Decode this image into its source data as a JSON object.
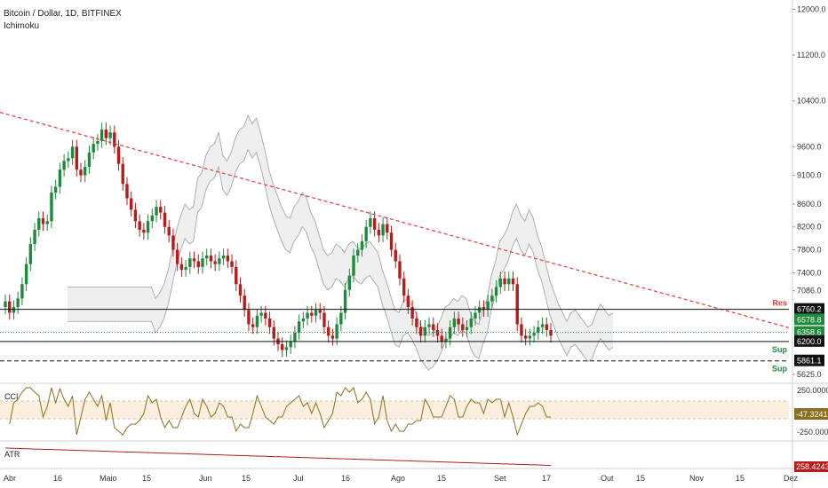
{
  "header": {
    "symbol": "Bitcoin / Dollar, 1D, BITFINEX",
    "indicator": "Ichimoku"
  },
  "colors": {
    "up": "#1e8a3c",
    "down": "#b71c1c",
    "trendline": "#e53935",
    "cloud": "#e8e8e8",
    "cloud_line": "#9e9e9e",
    "cci_line": "#8d6e1f",
    "cci_band": "#fbf0df",
    "atr_line": "#b71c1c",
    "res": "#e53935",
    "sup": "#1e8a3c"
  },
  "chart_data": {
    "type": "candlestick",
    "title": "Bitcoin / Dollar, 1D, BITFINEX",
    "y_axis_ticks": [
      "12000.0",
      "11200.0",
      "10400.0",
      "9600.0",
      "9100.0",
      "8600.0",
      "8200.0",
      "7800.0",
      "7400.0",
      "7086.0",
      "5625.0"
    ],
    "x_axis_ticks": [
      "Abr",
      "16",
      "Maio",
      "15",
      "Jun",
      "15",
      "Jul",
      "16",
      "Ago",
      "15",
      "Set",
      "17",
      "Out",
      "15",
      "Nov",
      "15",
      "Dez"
    ],
    "close_series": [
      6900,
      6700,
      6800,
      6950,
      7200,
      7550,
      7900,
      8150,
      8350,
      8250,
      8300,
      8800,
      8900,
      9200,
      9350,
      9400,
      9600,
      9200,
      9100,
      9250,
      9500,
      9650,
      9700,
      9900,
      9750,
      9850,
      9600,
      9300,
      8950,
      8700,
      8500,
      8300,
      8150,
      8100,
      8300,
      8400,
      8550,
      8450,
      8200,
      8050,
      7800,
      7550,
      7450,
      7500,
      7650,
      7600,
      7500,
      7650,
      7700,
      7600,
      7550,
      7650,
      7700,
      7600,
      7500,
      7200,
      7000,
      6750,
      6500,
      6450,
      6650,
      6700,
      6600,
      6450,
      6250,
      6150,
      6050,
      6100,
      6200,
      6350,
      6550,
      6600,
      6700,
      6650,
      6750,
      6700,
      6450,
      6300,
      6250,
      6500,
      6700,
      7100,
      7350,
      7700,
      7800,
      7950,
      8200,
      8350,
      8150,
      8050,
      8250,
      8100,
      7800,
      7600,
      7300,
      7000,
      6800,
      6600,
      6450,
      6300,
      6450,
      6500,
      6400,
      6300,
      6200,
      6250,
      6450,
      6600,
      6500,
      6400,
      6450,
      6600,
      6700,
      6800,
      6750,
      6900,
      7000,
      7150,
      7300,
      7200,
      7300,
      7200,
      6500,
      6300,
      6250,
      6300,
      6350,
      6450,
      6500,
      6400,
      6300
    ],
    "trendline": {
      "from": {
        "date": "Abr",
        "price": 10200
      },
      "to": {
        "date": "Dez",
        "price": 6440
      }
    },
    "levels": [
      {
        "label": "Res",
        "price": "6760.2",
        "style": "solid",
        "color": "#e53935"
      },
      {
        "label": "",
        "price": "6578.8",
        "style": "tag",
        "color": "#1e8a3c"
      },
      {
        "label": "",
        "price": "6358.6",
        "style": "dotted",
        "color": "#1e8a3c"
      },
      {
        "label": "Sup",
        "price": "6200.0",
        "style": "solid",
        "color": "#1e8a3c"
      },
      {
        "label": "Sup",
        "price": "5861.1",
        "style": "dashed",
        "color": "#1e8a3c"
      }
    ],
    "cci": {
      "ticks": [
        "250.0000",
        "-250.0000"
      ],
      "value": "-47.3241",
      "label": "CCI"
    },
    "atr": {
      "value": "258.4243",
      "label": "ATR"
    },
    "y_range": [
      5500,
      12100
    ],
    "grid": false
  }
}
